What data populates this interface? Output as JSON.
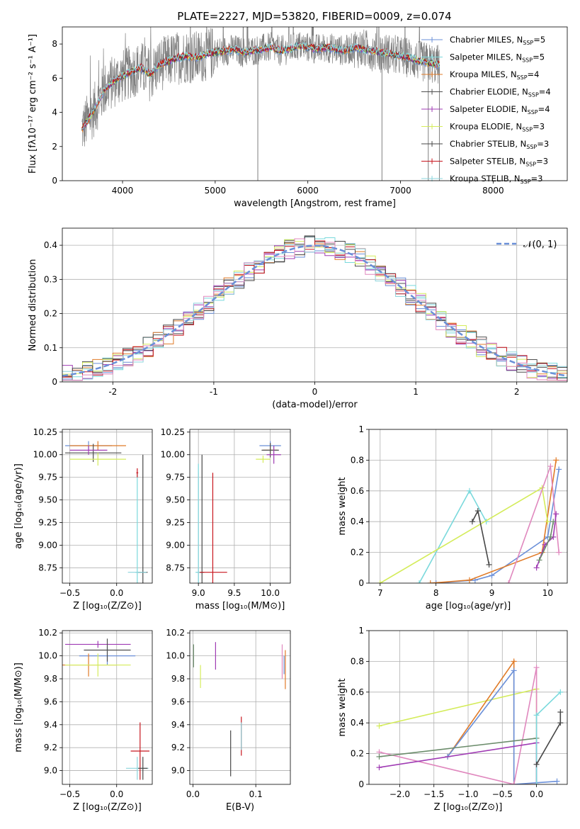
{
  "figure": {
    "title": "PLATE=2227, MJD=53820, FIBERID=0009, z=0.074"
  },
  "chart_data": [
    {
      "id": "spectrum",
      "type": "line",
      "xlabel": "wavelength [Angstrom, rest frame]",
      "ylabel": "Flux [fλ10⁻¹⁷ erg cm⁻² s⁻¹ A⁻¹]",
      "xlim": [
        3350,
        8800
      ],
      "ylim": [
        0,
        9
      ],
      "xticks": [
        4000,
        5000,
        6000,
        7000,
        8000
      ],
      "yticks": [
        0,
        2,
        4,
        6,
        8
      ],
      "observed": {
        "color": "#808080",
        "x": [
          3560,
          3620,
          3700,
          3800,
          3900,
          4000,
          4100,
          4200,
          4300,
          4400,
          4500,
          4600,
          4700,
          4800,
          4900,
          5000,
          5100,
          5200,
          5300,
          5400,
          5500,
          5600,
          5700,
          5800,
          5900,
          6000,
          6100,
          6200,
          6300,
          6400,
          6500,
          6600,
          6700,
          6800,
          6900,
          7000,
          7100,
          7200,
          7300,
          7400,
          7420
        ],
        "y": [
          3.0,
          3.5,
          4.2,
          5.3,
          5.8,
          6.1,
          6.4,
          6.6,
          6.2,
          6.8,
          7.0,
          7.2,
          7.3,
          7.2,
          7.4,
          7.5,
          7.6,
          7.7,
          7.5,
          7.6,
          7.7,
          7.8,
          7.6,
          7.7,
          7.9,
          7.8,
          7.7,
          7.8,
          7.7,
          7.6,
          7.8,
          7.7,
          7.6,
          7.5,
          7.4,
          7.3,
          7.2,
          7.0,
          6.9,
          6.8,
          6.8
        ]
      },
      "legend": {
        "loc": "upper right"
      },
      "series": [
        {
          "name": "Chabrier MILES, N",
          "sub": "SSP",
          "suffix": "=5",
          "color": "#6a8fd8"
        },
        {
          "name": "Salpeter MILES, N",
          "sub": "SSP",
          "suffix": "=5",
          "color": "#7ad9dc"
        },
        {
          "name": "Kroupa MILES, N",
          "sub": "SSP",
          "suffix": "=4",
          "color": "#e07b28"
        },
        {
          "name": "Chabrier ELODIE, N",
          "sub": "SSP",
          "suffix": "=4",
          "color": "#4f4f4f"
        },
        {
          "name": "Salpeter ELODIE, N",
          "sub": "SSP",
          "suffix": "=4",
          "color": "#a03cb4"
        },
        {
          "name": "Kroupa ELODIE, N",
          "sub": "SSP",
          "suffix": "=3",
          "color": "#d4ec5a"
        },
        {
          "name": "Chabrier STELIB, N",
          "sub": "SSP",
          "suffix": "=3",
          "color": "#474747"
        },
        {
          "name": "Salpeter STELIB, N",
          "sub": "SSP",
          "suffix": "=3",
          "color": "#c8161e"
        },
        {
          "name": "Kroupa STELIB, N",
          "sub": "SSP",
          "suffix": "=3",
          "color": "#8cd4dc"
        }
      ]
    },
    {
      "id": "residuals",
      "type": "line",
      "xlabel": "(data-model)/error",
      "ylabel": "Normed distribution",
      "xlim": [
        -2.5,
        2.5
      ],
      "ylim": [
        0,
        0.45
      ],
      "xticks": [
        -2,
        -1,
        0,
        1,
        2
      ],
      "yticks": [
        0.0,
        0.1,
        0.2,
        0.3,
        0.4
      ],
      "grid": true,
      "legend": {
        "loc": "upper right",
        "label": "𝒩(0, 1)"
      },
      "reference": {
        "name": "N(0,1)",
        "color": "#6a8fd8",
        "mu": 0,
        "sigma": 1
      },
      "histogram_bin_width": 0.1
    },
    {
      "id": "age-vs-Z",
      "type": "scatter",
      "xlabel": "Z [log₁₀(Z/Z⊙)]",
      "ylabel": "age  [log₁₀(age/yr)]",
      "xlim": [
        -0.58,
        0.38
      ],
      "ylim": [
        8.58,
        10.28
      ],
      "xticks": [
        -0.5,
        0.0
      ],
      "xticklabels": [
        "−0.5",
        "0.0"
      ],
      "yticks": [
        8.75,
        9.0,
        9.25,
        9.5,
        9.75,
        10.0,
        10.25
      ],
      "yticklabels": [
        "8.75",
        "9.00",
        "9.25",
        "9.50",
        "9.75",
        "10.00",
        "10.25"
      ],
      "grid": true,
      "points": [
        {
          "x": -0.3,
          "y": 10.1,
          "xerr": 0.25,
          "yerr": 0.05,
          "color": "#6a8fd8"
        },
        {
          "x": -0.2,
          "y": 10.1,
          "xerr": 0.3,
          "yerr": 0.05,
          "color": "#e07b28"
        },
        {
          "x": -0.25,
          "y": 10.02,
          "xerr": 0.3,
          "yerr": 0.1,
          "color": "#4f4f4f"
        },
        {
          "x": -0.3,
          "y": 10.05,
          "xerr": 0.2,
          "yerr": 0.05,
          "color": "#a03cb4"
        },
        {
          "x": -0.2,
          "y": 9.95,
          "xerr": 0.3,
          "yerr": 0.07,
          "color": "#d4ec5a"
        },
        {
          "x": 0.22,
          "y": 8.7,
          "xerr": 0.02,
          "yerr": 1.1,
          "color": "#7ad9dc"
        },
        {
          "x": 0.28,
          "y": 8.7,
          "xerr": 0.05,
          "yerr": 1.3,
          "color": "#474747"
        },
        {
          "x": 0.22,
          "y": 9.8,
          "xerr": 0.01,
          "yerr": 0.05,
          "color": "#c8161e"
        },
        {
          "x": 0.22,
          "y": 8.7,
          "xerr": 0.1,
          "yerr": 0.01,
          "color": "#8cd4dc"
        }
      ]
    },
    {
      "id": "age-vs-mass",
      "type": "scatter",
      "xlabel": "mass [log₁₀(M/M⊙)]",
      "ylabel": "",
      "xlim": [
        8.88,
        10.28
      ],
      "ylim": [
        8.58,
        10.28
      ],
      "xticks": [
        9.0,
        9.5,
        10.0
      ],
      "xticklabels": [
        "9.0",
        "9.5",
        "10.0"
      ],
      "yticks": [
        8.75,
        9.0,
        9.25,
        9.5,
        9.75,
        10.0,
        10.25
      ],
      "yticklabels": [
        "8.75",
        "9.00",
        "9.25",
        "9.50",
        "9.75",
        "10.00",
        "10.25"
      ],
      "grid": true,
      "points": [
        {
          "x": 10.0,
          "y": 10.1,
          "xerr": 0.15,
          "yerr": 0.05,
          "color": "#6a8fd8"
        },
        {
          "x": 10.0,
          "y": 10.05,
          "xerr": 0.1,
          "yerr": 0.06,
          "color": "#e07b28"
        },
        {
          "x": 10.0,
          "y": 10.05,
          "xerr": 0.12,
          "yerr": 0.08,
          "color": "#4f4f4f"
        },
        {
          "x": 10.05,
          "y": 10.0,
          "xerr": 0.1,
          "yerr": 0.1,
          "color": "#a03cb4"
        },
        {
          "x": 9.9,
          "y": 9.95,
          "xerr": 0.1,
          "yerr": 0.04,
          "color": "#d4ec5a"
        },
        {
          "x": 9.0,
          "y": 8.7,
          "xerr": 0.04,
          "yerr": 1.2,
          "color": "#7ad9dc"
        },
        {
          "x": 9.05,
          "y": 8.7,
          "xerr": 0.03,
          "yerr": 1.3,
          "color": "#474747"
        },
        {
          "x": 9.2,
          "y": 8.7,
          "xerr": 0.2,
          "yerr": 1.1,
          "color": "#c8161e"
        },
        {
          "x": 9.0,
          "y": 8.7,
          "xerr": 0.02,
          "yerr": 1.1,
          "color": "#8cd4dc"
        }
      ]
    },
    {
      "id": "weight-vs-age",
      "type": "line",
      "xlabel": "age  [log₁₀(age/yr)]",
      "ylabel": "mass weight",
      "xlim": [
        6.8,
        10.35
      ],
      "ylim": [
        0,
        1
      ],
      "xticks": [
        7,
        8,
        9,
        10
      ],
      "yticks": [
        0.0,
        0.2,
        0.4,
        0.6,
        0.8,
        1.0
      ],
      "grid": true,
      "series": [
        {
          "color": "#7ad9dc",
          "x": [
            7.7,
            8.6,
            8.9
          ],
          "y": [
            0.0,
            0.6,
            0.4
          ]
        },
        {
          "color": "#6a8fd8",
          "x": [
            8.0,
            8.7,
            9.0,
            10.0,
            10.2
          ],
          "y": [
            0.0,
            0.02,
            0.05,
            0.3,
            0.74
          ]
        },
        {
          "color": "#e07b28",
          "x": [
            7.9,
            8.6,
            9.9,
            10.15
          ],
          "y": [
            0.0,
            0.02,
            0.2,
            0.8
          ]
        },
        {
          "color": "#d4ec5a",
          "x": [
            7.0,
            9.9,
            10.0
          ],
          "y": [
            0.0,
            0.62,
            0.4
          ]
        },
        {
          "color": "#e088be",
          "x": [
            9.3,
            10.05,
            10.2
          ],
          "y": [
            0.0,
            0.76,
            0.2
          ]
        },
        {
          "color": "#a03cb4",
          "x": [
            9.8,
            9.95,
            10.1,
            10.15
          ],
          "y": [
            0.1,
            0.25,
            0.3,
            0.45
          ]
        },
        {
          "color": "#474747",
          "x": [
            8.65,
            8.75,
            8.95
          ],
          "y": [
            0.4,
            0.47,
            0.12
          ]
        },
        {
          "color": "#6b8c6b",
          "x": [
            9.85,
            10.05,
            10.1
          ],
          "y": [
            0.15,
            0.3,
            0.4
          ]
        }
      ]
    },
    {
      "id": "mass-vs-Z",
      "type": "scatter",
      "xlabel": "Z [log₁₀(Z/Z⊙)]",
      "ylabel": "mass [log₁₀(M/M⊙)]",
      "xlim": [
        -0.58,
        0.38
      ],
      "ylim": [
        8.88,
        10.22
      ],
      "xticks": [
        -0.5,
        0.0
      ],
      "xticklabels": [
        "−0.5",
        "0.0"
      ],
      "yticks": [
        9.0,
        9.2,
        9.4,
        9.6,
        9.8,
        10.0,
        10.2
      ],
      "yticklabels": [
        "9.0",
        "9.2",
        "9.4",
        "9.6",
        "9.8",
        "10.0",
        "10.2"
      ],
      "grid": true,
      "points": [
        {
          "x": -0.2,
          "y": 10.1,
          "xerr": 0.35,
          "yerr": 0.03,
          "color": "#a03cb4"
        },
        {
          "x": -0.1,
          "y": 10.0,
          "xerr": 0.3,
          "yerr": 0.08,
          "color": "#6a8fd8"
        },
        {
          "x": -0.3,
          "y": 9.92,
          "xerr": 0.3,
          "yerr": 0.1,
          "color": "#e07b28"
        },
        {
          "x": -0.2,
          "y": 9.92,
          "xerr": 0.35,
          "yerr": 0.1,
          "color": "#d4ec5a"
        },
        {
          "x": -0.1,
          "y": 10.05,
          "xerr": 0.25,
          "yerr": 0.1,
          "color": "#4f4f4f"
        },
        {
          "x": 0.25,
          "y": 9.17,
          "xerr": 0.1,
          "yerr": 0.25,
          "color": "#c8161e"
        },
        {
          "x": 0.22,
          "y": 9.02,
          "xerr": 0.12,
          "yerr": 0.1,
          "color": "#8cd4dc"
        },
        {
          "x": 0.28,
          "y": 9.02,
          "xerr": 0.05,
          "yerr": 0.1,
          "color": "#474747"
        }
      ]
    },
    {
      "id": "mass-vs-EBV",
      "type": "scatter",
      "xlabel": "E(B-V)",
      "ylabel": "",
      "xlim": [
        -0.005,
        0.155
      ],
      "ylim": [
        8.88,
        10.22
      ],
      "xticks": [
        0.0,
        0.1
      ],
      "xticklabels": [
        "0.0",
        "0.1"
      ],
      "yticks": [
        9.0,
        9.2,
        9.4,
        9.6,
        9.8,
        10.0,
        10.2
      ],
      "yticklabels": [
        "9.0",
        "9.2",
        "9.4",
        "9.6",
        "9.8",
        "10.0",
        "10.2"
      ],
      "grid": true,
      "points": [
        {
          "x": 0.001,
          "y": 10.0,
          "xerr": 0.0,
          "yerr": 0.1,
          "color": "#6b8c6b"
        },
        {
          "x": 0.012,
          "y": 9.82,
          "xerr": 0.0,
          "yerr": 0.1,
          "color": "#d4ec5a"
        },
        {
          "x": 0.036,
          "y": 10.0,
          "xerr": 0.0,
          "yerr": 0.12,
          "color": "#a03cb4"
        },
        {
          "x": 0.06,
          "y": 9.15,
          "xerr": 0.0,
          "yerr": 0.2,
          "color": "#474747"
        },
        {
          "x": 0.077,
          "y": 9.3,
          "xerr": 0.0,
          "yerr": 0.17,
          "color": "#c8161e"
        },
        {
          "x": 0.077,
          "y": 9.3,
          "xerr": 0.0,
          "yerr": 0.12,
          "color": "#8cd4dc"
        },
        {
          "x": 0.142,
          "y": 9.95,
          "xerr": 0.0,
          "yerr": 0.15,
          "color": "#e088be"
        },
        {
          "x": 0.147,
          "y": 9.88,
          "xerr": 0.0,
          "yerr": 0.17,
          "color": "#e07b28"
        },
        {
          "x": 0.145,
          "y": 9.92,
          "xerr": 0.0,
          "yerr": 0.08,
          "color": "#6a8fd8"
        }
      ]
    },
    {
      "id": "weight-vs-Z",
      "type": "line",
      "xlabel": "Z [log₁₀(Z/Z⊙)]",
      "ylabel": "mass weight",
      "xlim": [
        -2.45,
        0.45
      ],
      "ylim": [
        0,
        1
      ],
      "xticks": [
        -2.0,
        -1.5,
        -1.0,
        -0.5,
        0.0
      ],
      "xticklabels": [
        "−2.0",
        "−1.5",
        "−1.0",
        "−0.5",
        "0.0"
      ],
      "yticks": [
        0.0,
        0.2,
        0.4,
        0.6,
        0.8,
        1.0
      ],
      "grid": true,
      "series": [
        {
          "color": "#d4ec5a",
          "x": [
            -2.3,
            0.0,
            0.0
          ],
          "y": [
            0.38,
            0.62,
            0.0
          ]
        },
        {
          "color": "#e07b28",
          "x": [
            -1.3,
            -0.33,
            -0.33,
            0.0
          ],
          "y": [
            0.18,
            0.8,
            0.0,
            0.0
          ]
        },
        {
          "color": "#6a8fd8",
          "x": [
            -1.3,
            -0.33,
            -0.33,
            0.3
          ],
          "y": [
            0.18,
            0.74,
            0.0,
            0.02
          ]
        },
        {
          "color": "#e088be",
          "x": [
            -2.3,
            -0.33,
            0.0,
            0.0
          ],
          "y": [
            0.21,
            0.0,
            0.76,
            0.0
          ]
        },
        {
          "color": "#a03cb4",
          "x": [
            -2.3,
            0.0,
            0.0
          ],
          "y": [
            0.11,
            0.27,
            0.0
          ]
        },
        {
          "color": "#6b8c6b",
          "x": [
            -2.3,
            0.0
          ],
          "y": [
            0.18,
            0.3
          ]
        },
        {
          "color": "#7ad9dc",
          "x": [
            0.0,
            0.0,
            0.35
          ],
          "y": [
            0.0,
            0.45,
            0.6
          ]
        },
        {
          "color": "#474747",
          "x": [
            0.0,
            0.35,
            0.35
          ],
          "y": [
            0.13,
            0.4,
            0.47
          ]
        }
      ]
    }
  ]
}
